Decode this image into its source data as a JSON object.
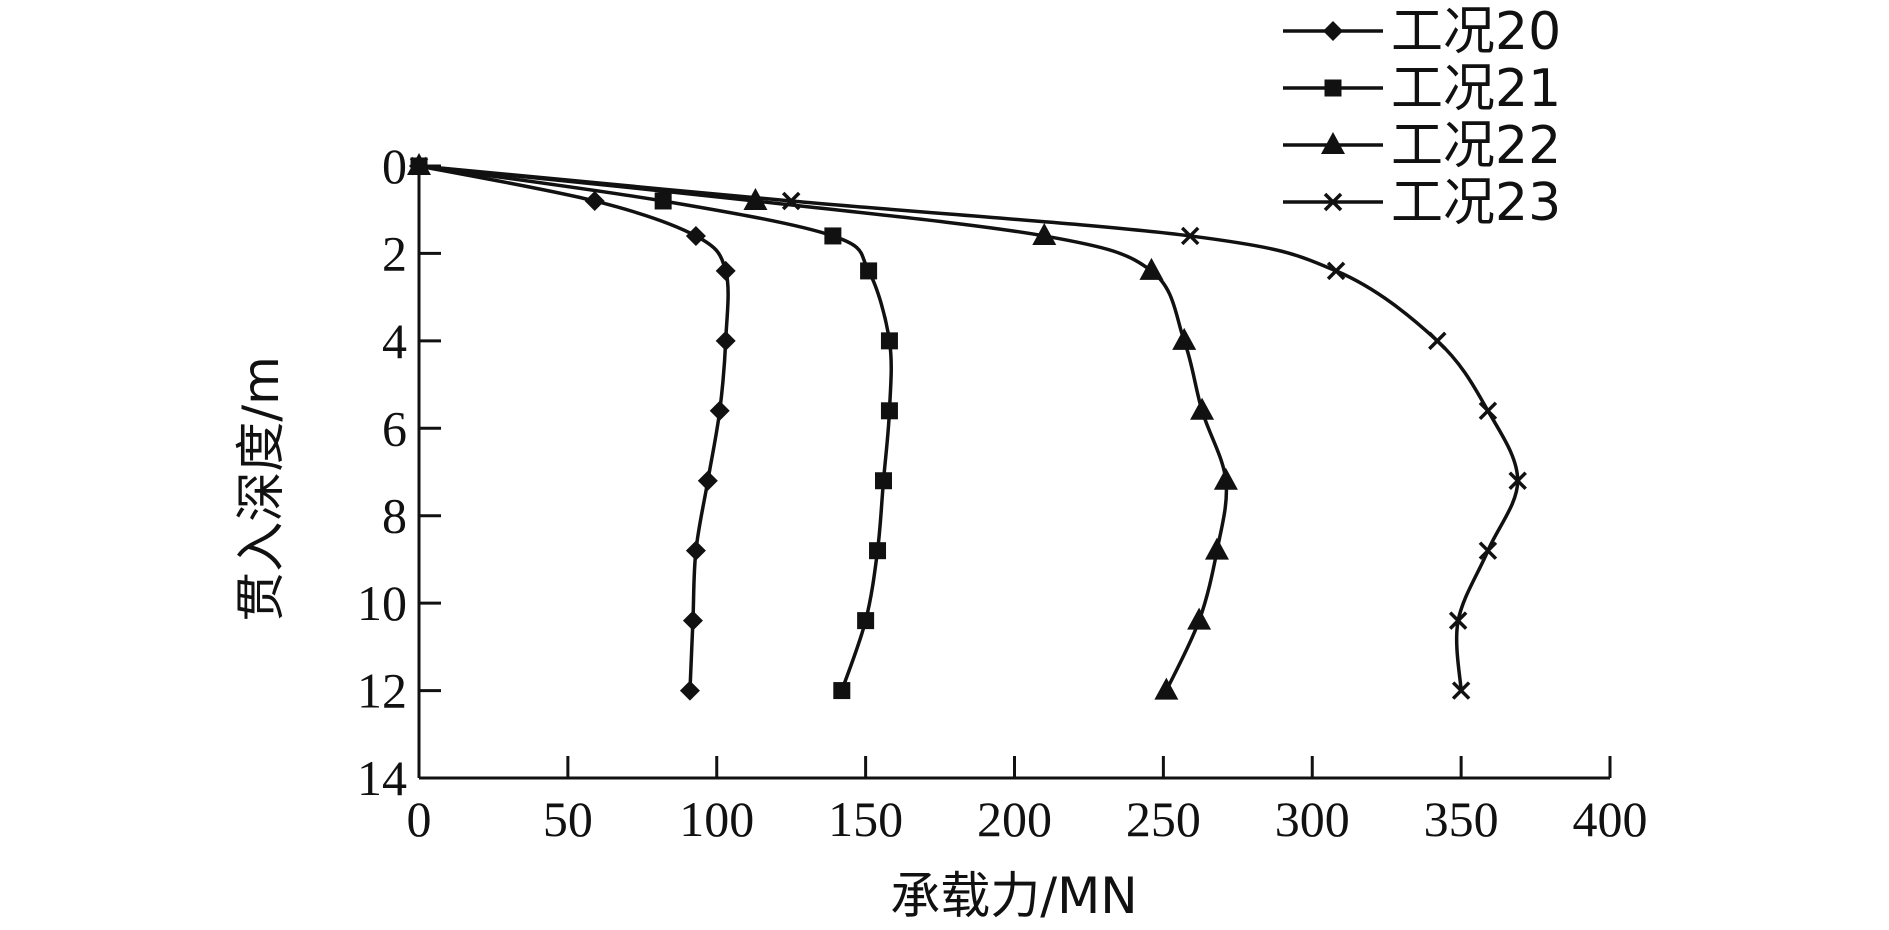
{
  "chart_data": {
    "type": "line",
    "xlabel": "承载力/MN",
    "ylabel": "贯入深度/m",
    "xlim": [
      0,
      400
    ],
    "ylim": [
      0,
      14
    ],
    "y_inverted": true,
    "xticks": [
      0,
      50,
      100,
      150,
      200,
      250,
      300,
      350,
      400
    ],
    "yticks": [
      0,
      2,
      4,
      6,
      8,
      10,
      12,
      14
    ],
    "grid": false,
    "legend_position": "top-right",
    "series": [
      {
        "name": "工况20",
        "marker": "diamond",
        "x": [
          0,
          59,
          93,
          103,
          103,
          101,
          97,
          93,
          92,
          91
        ],
        "y": [
          0,
          0.8,
          1.6,
          2.4,
          4.0,
          5.6,
          7.2,
          8.8,
          10.4,
          12.0
        ]
      },
      {
        "name": "工况21",
        "marker": "square",
        "x": [
          0,
          82,
          139,
          151,
          158,
          158,
          156,
          154,
          150,
          142
        ],
        "y": [
          0,
          0.8,
          1.6,
          2.4,
          4.0,
          5.6,
          7.2,
          8.8,
          10.4,
          12.0
        ]
      },
      {
        "name": "工况22",
        "marker": "triangle",
        "x": [
          0,
          113,
          210,
          246,
          257,
          263,
          271,
          268,
          262,
          251
        ],
        "y": [
          0,
          0.8,
          1.6,
          2.4,
          4.0,
          5.6,
          7.2,
          8.8,
          10.4,
          12.0
        ]
      },
      {
        "name": "工况23",
        "marker": "x",
        "x": [
          0,
          125,
          259,
          308,
          342,
          359,
          369,
          359,
          349,
          350
        ],
        "y": [
          0,
          0.8,
          1.6,
          2.4,
          4.0,
          5.6,
          7.2,
          8.8,
          10.4,
          12.0
        ]
      }
    ]
  }
}
